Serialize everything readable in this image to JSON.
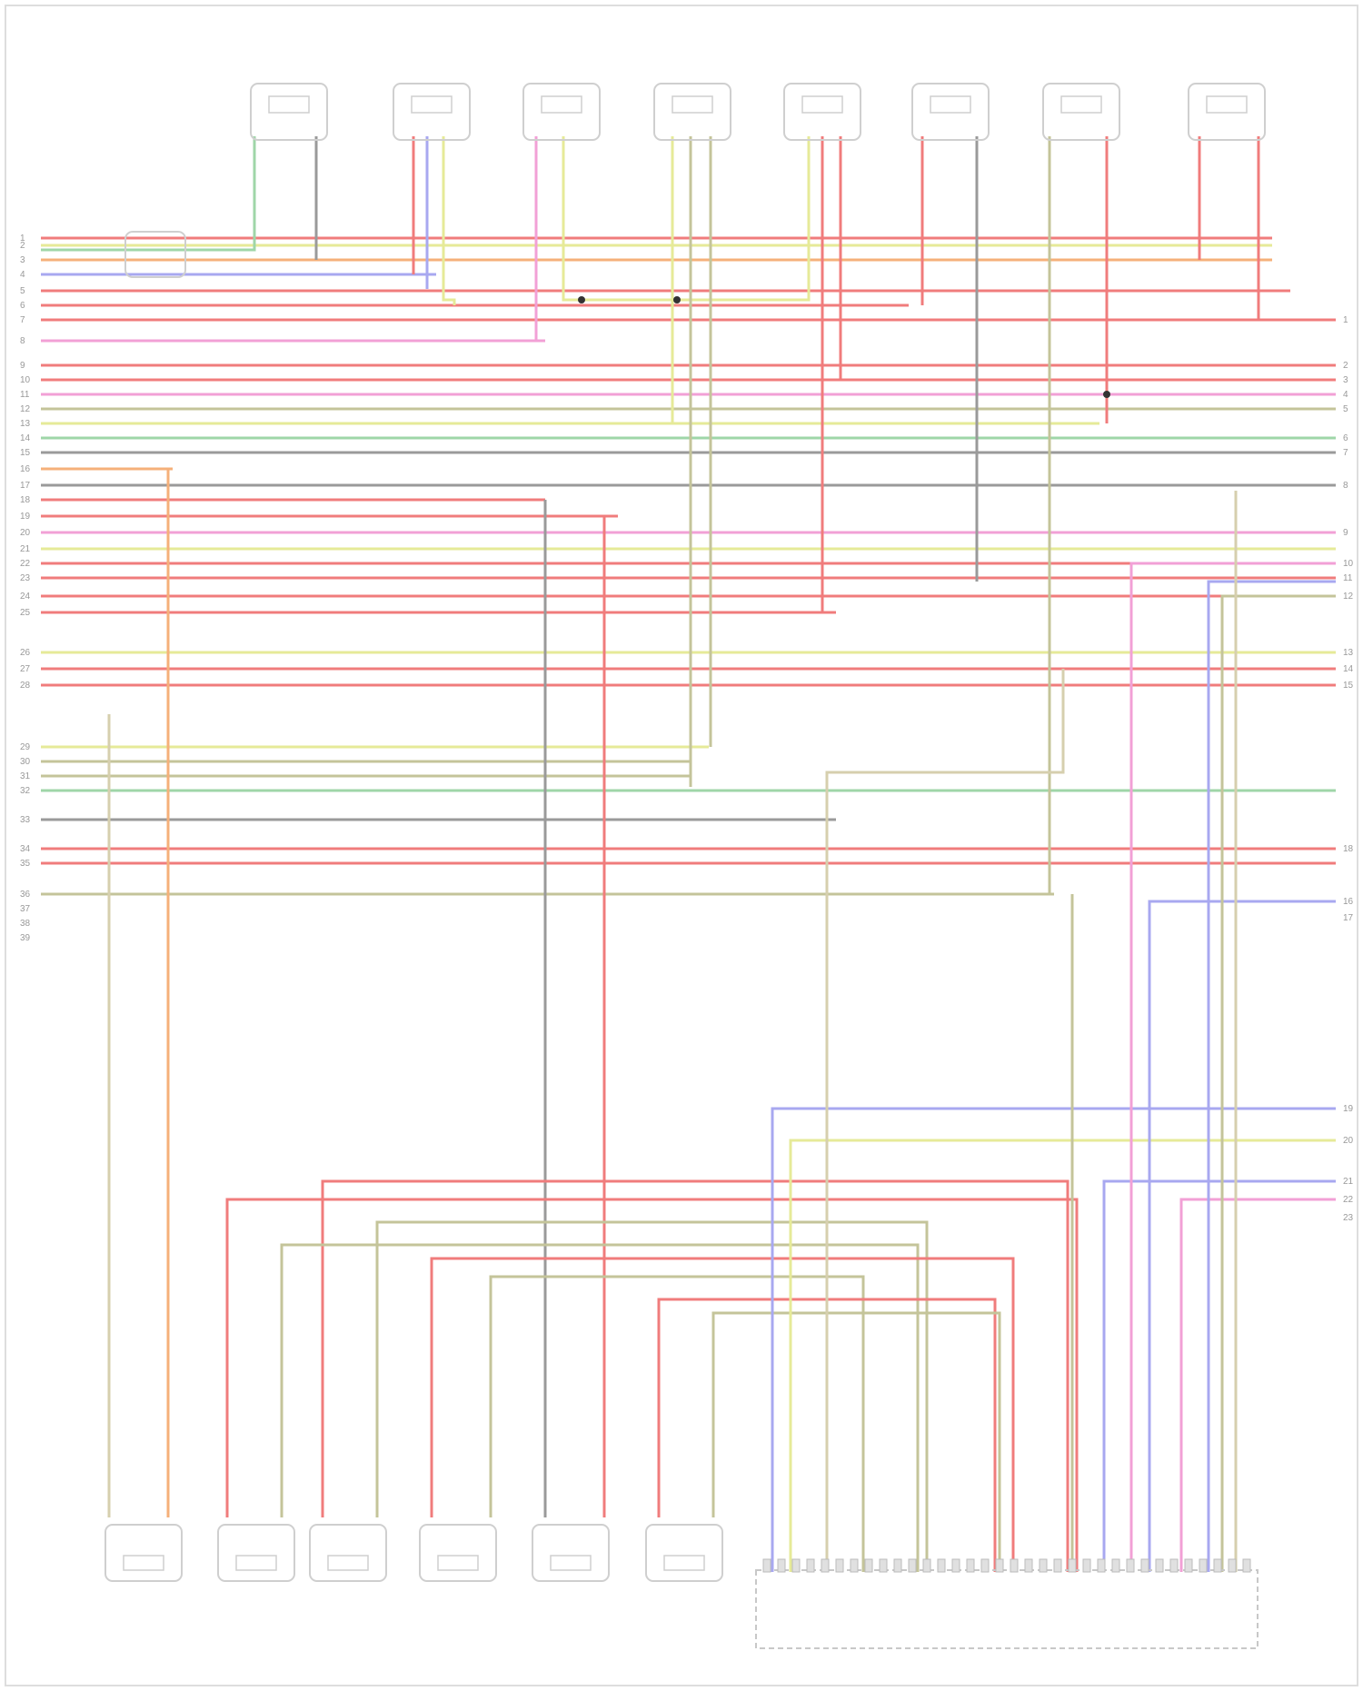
{
  "diagram": {
    "footer": "",
    "components": [],
    "ecm_label": "",
    "colors": {
      "frame": "#dddddd",
      "component": "#cfcfcf",
      "red": "#f07c7c",
      "pink": "#f2a0d6",
      "yellow": "#e6ea98",
      "olive": "#c4c49a",
      "green": "#9fd6a8",
      "blue": "#a8a8f0",
      "gray": "#9a9a9a",
      "beige": "#d6cfae",
      "orange": "#f5b07a"
    },
    "left_pins": [
      "1",
      "2",
      "3",
      "4",
      "5",
      "6",
      "7",
      "8",
      "9",
      "10",
      "11",
      "12",
      "13",
      "14",
      "15",
      "16",
      "17",
      "18",
      "19",
      "20",
      "21",
      "22",
      "23",
      "24",
      "25",
      "26",
      "27",
      "28",
      "29",
      "30",
      "31",
      "32",
      "33",
      "34",
      "35",
      "36",
      "37",
      "38",
      "39"
    ],
    "right_pins": [
      "1",
      "2",
      "3",
      "4",
      "5",
      "6",
      "7",
      "8",
      "9",
      "10",
      "11",
      "12",
      "13",
      "14",
      "15",
      "16",
      "17",
      "18",
      "19",
      "20",
      "21",
      "22",
      "23"
    ]
  }
}
